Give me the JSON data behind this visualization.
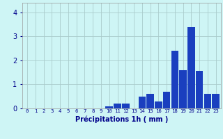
{
  "categories": [
    0,
    1,
    2,
    3,
    4,
    5,
    6,
    7,
    8,
    9,
    10,
    11,
    12,
    13,
    14,
    15,
    16,
    17,
    18,
    19,
    20,
    21,
    22,
    23
  ],
  "values": [
    0.0,
    0.0,
    0.0,
    0.0,
    0.0,
    0.0,
    0.0,
    0.0,
    0.0,
    0.0,
    0.1,
    0.2,
    0.2,
    0.0,
    0.5,
    0.6,
    0.3,
    0.7,
    2.4,
    1.6,
    3.4,
    1.55,
    0.6,
    0.6
  ],
  "bar_color": "#1a3fbf",
  "background_color": "#cef5f5",
  "grid_color": "#aacccc",
  "xlabel": "Précipitations 1h ( mm )",
  "xlabel_color": "#00008b",
  "tick_color": "#00008b",
  "ylim": [
    0,
    4.4
  ],
  "yticks": [
    0,
    1,
    2,
    3,
    4
  ]
}
